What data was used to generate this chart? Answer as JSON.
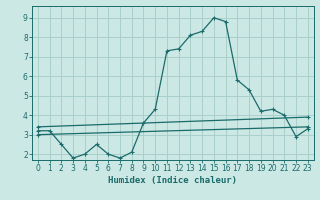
{
  "title": "",
  "xlabel": "Humidex (Indice chaleur)",
  "ylabel": "",
  "background_color": "#cce8e4",
  "grid_color": "#aacfcb",
  "line_color": "#1a6b6b",
  "x_ticks": [
    0,
    1,
    2,
    3,
    4,
    5,
    6,
    7,
    8,
    9,
    10,
    11,
    12,
    13,
    14,
    15,
    16,
    17,
    18,
    19,
    20,
    21,
    22,
    23
  ],
  "y_ticks": [
    2,
    3,
    4,
    5,
    6,
    7,
    8,
    9
  ],
  "ylim": [
    1.7,
    9.6
  ],
  "xlim": [
    -0.5,
    23.5
  ],
  "series": [
    {
      "x": [
        0,
        1,
        2,
        3,
        4,
        5,
        6,
        7,
        8,
        9,
        10,
        11,
        12,
        13,
        14,
        15,
        16,
        17,
        18,
        19,
        20,
        21,
        22,
        23
      ],
      "y": [
        3.2,
        3.2,
        2.5,
        1.8,
        2.0,
        2.5,
        2.0,
        1.8,
        2.1,
        3.6,
        4.3,
        7.3,
        7.4,
        8.1,
        8.3,
        9.0,
        8.8,
        5.8,
        5.3,
        4.2,
        4.3,
        4.0,
        2.9,
        3.3
      ]
    },
    {
      "x": [
        0,
        23
      ],
      "y": [
        3.4,
        3.9
      ]
    },
    {
      "x": [
        0,
        23
      ],
      "y": [
        3.0,
        3.4
      ]
    }
  ]
}
